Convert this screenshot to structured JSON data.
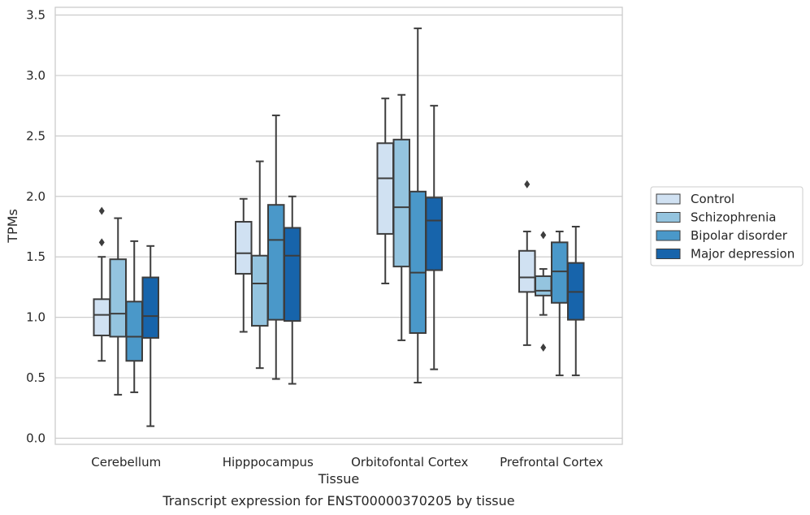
{
  "caption": "Transcript expression for ENST00000370205 by tissue",
  "chart_data": {
    "type": "boxplot",
    "xlabel": "Tissue",
    "ylabel": "TPMs",
    "ylim": [
      -0.05,
      3.57
    ],
    "yticks": [
      0.0,
      0.5,
      1.0,
      1.5,
      2.0,
      2.5,
      3.0,
      3.5
    ],
    "ytick_labels": [
      "0.0",
      "0.5",
      "1.0",
      "1.5",
      "2.0",
      "2.5",
      "3.0",
      "3.5"
    ],
    "grid": "horizontal",
    "legend_position": "right",
    "categories": [
      "Cerebellum",
      "Hipppocampus",
      "Orbitofontal Cortex",
      "Prefrontal Cortex"
    ],
    "series": [
      {
        "name": "Control",
        "color": "#d0e1f2",
        "boxes": [
          {
            "whislo": 0.64,
            "q1": 0.85,
            "med": 1.02,
            "q3": 1.15,
            "whishi": 1.5,
            "fliers": [
              1.62,
              1.88
            ]
          },
          {
            "whislo": 0.88,
            "q1": 1.36,
            "med": 1.53,
            "q3": 1.79,
            "whishi": 1.98,
            "fliers": []
          },
          {
            "whislo": 1.28,
            "q1": 1.69,
            "med": 2.15,
            "q3": 2.44,
            "whishi": 2.81,
            "fliers": []
          },
          {
            "whislo": 0.77,
            "q1": 1.21,
            "med": 1.33,
            "q3": 1.55,
            "whishi": 1.71,
            "fliers": [
              2.1
            ]
          }
        ]
      },
      {
        "name": "Schizophrenia",
        "color": "#94c4df",
        "boxes": [
          {
            "whislo": 0.36,
            "q1": 0.84,
            "med": 1.03,
            "q3": 1.48,
            "whishi": 1.82,
            "fliers": []
          },
          {
            "whislo": 0.58,
            "q1": 0.93,
            "med": 1.28,
            "q3": 1.51,
            "whishi": 2.29,
            "fliers": []
          },
          {
            "whislo": 0.81,
            "q1": 1.42,
            "med": 1.91,
            "q3": 2.47,
            "whishi": 2.84,
            "fliers": []
          },
          {
            "whislo": 1.02,
            "q1": 1.18,
            "med": 1.22,
            "q3": 1.34,
            "whishi": 1.4,
            "fliers": [
              0.75,
              1.68
            ]
          }
        ]
      },
      {
        "name": "Bipolar disorder",
        "color": "#4a98c9",
        "boxes": [
          {
            "whislo": 0.38,
            "q1": 0.64,
            "med": 0.84,
            "q3": 1.13,
            "whishi": 1.63,
            "fliers": []
          },
          {
            "whislo": 0.49,
            "q1": 0.98,
            "med": 1.64,
            "q3": 1.93,
            "whishi": 2.67,
            "fliers": []
          },
          {
            "whislo": 0.46,
            "q1": 0.87,
            "med": 1.37,
            "q3": 2.04,
            "whishi": 3.39,
            "fliers": []
          },
          {
            "whislo": 0.52,
            "q1": 1.12,
            "med": 1.38,
            "q3": 1.62,
            "whishi": 1.71,
            "fliers": []
          }
        ]
      },
      {
        "name": "Major depression",
        "color": "#1764ab",
        "boxes": [
          {
            "whislo": 0.1,
            "q1": 0.83,
            "med": 1.01,
            "q3": 1.33,
            "whishi": 1.59,
            "fliers": []
          },
          {
            "whislo": 0.45,
            "q1": 0.97,
            "med": 1.51,
            "q3": 1.74,
            "whishi": 2.0,
            "fliers": []
          },
          {
            "whislo": 0.57,
            "q1": 1.39,
            "med": 1.8,
            "q3": 1.99,
            "whishi": 2.75,
            "fliers": []
          },
          {
            "whislo": 0.52,
            "q1": 0.98,
            "med": 1.21,
            "q3": 1.45,
            "whishi": 1.75,
            "fliers": []
          }
        ]
      }
    ]
  }
}
